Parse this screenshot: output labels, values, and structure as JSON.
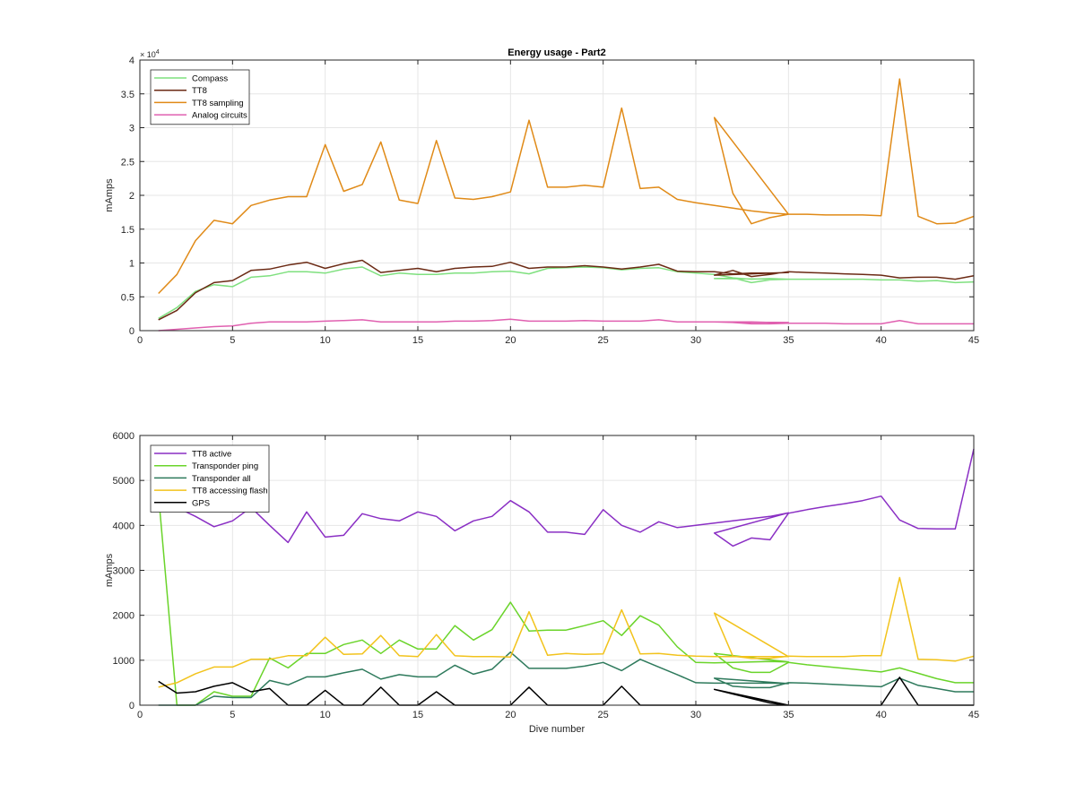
{
  "chart_data": [
    {
      "type": "line",
      "title": "Energy usage - Part2",
      "xlabel": "",
      "ylabel": "mAmps",
      "y_exponent": "× 10",
      "y_exponent_power": "4",
      "xlim": [
        0,
        45
      ],
      "ylim": [
        0,
        40000
      ],
      "xticks": [
        0,
        5,
        10,
        15,
        20,
        25,
        30,
        35,
        40,
        45
      ],
      "yticks": [
        0,
        5000,
        10000,
        15000,
        20000,
        25000,
        30000,
        35000,
        40000
      ],
      "ytick_labels": [
        "0",
        "0.5",
        "1",
        "1.5",
        "2",
        "2.5",
        "3",
        "3.5",
        "4"
      ],
      "grid": true,
      "legend_position": "top-left",
      "series": [
        {
          "name": "Compass",
          "color": "#7fe07f",
          "x": [
            1,
            2,
            3,
            4,
            5,
            6,
            7,
            8,
            9,
            10,
            11,
            12,
            13,
            14,
            15,
            16,
            17,
            18,
            19,
            20,
            21,
            22,
            23,
            24,
            25,
            26,
            27,
            28,
            29,
            30,
            31,
            32,
            33,
            34,
            35,
            31,
            32,
            33,
            34,
            35,
            36,
            37,
            38,
            39,
            40,
            41,
            42,
            43,
            44,
            45
          ],
          "y": [
            1800,
            3400,
            5800,
            6800,
            6500,
            7900,
            8100,
            8700,
            8700,
            8500,
            9100,
            9400,
            8100,
            8500,
            8300,
            8300,
            8500,
            8500,
            8700,
            8800,
            8400,
            9200,
            9300,
            9400,
            9300,
            9000,
            9200,
            9300,
            8700,
            8500,
            8300,
            7800,
            7600,
            7700,
            7600,
            7700,
            7800,
            7100,
            7500,
            7600,
            7600,
            7600,
            7600,
            7600,
            7500,
            7500,
            7300,
            7400,
            7100,
            7200
          ]
        },
        {
          "name": "TT8",
          "color": "#6b2a14",
          "x": [
            1,
            2,
            3,
            4,
            5,
            6,
            7,
            8,
            9,
            10,
            11,
            12,
            13,
            14,
            15,
            16,
            17,
            18,
            19,
            20,
            21,
            22,
            23,
            24,
            25,
            26,
            27,
            28,
            29,
            30,
            31,
            32,
            33,
            34,
            35,
            31,
            32,
            33,
            34,
            35,
            36,
            37,
            38,
            39,
            40,
            41,
            42,
            43,
            44,
            45
          ],
          "y": [
            1600,
            3000,
            5600,
            7100,
            7400,
            8900,
            9100,
            9700,
            10100,
            9200,
            9900,
            10400,
            8600,
            8900,
            9200,
            8700,
            9200,
            9400,
            9500,
            10100,
            9200,
            9400,
            9400,
            9600,
            9400,
            9100,
            9400,
            9800,
            8800,
            8700,
            8700,
            8400,
            8500,
            8500,
            8600,
            8200,
            8900,
            8000,
            8300,
            8700,
            8600,
            8500,
            8400,
            8300,
            8200,
            7800,
            7900,
            7900,
            7600,
            8100
          ]
        },
        {
          "name": "TT8 sampling",
          "color": "#e08a17",
          "x": [
            1,
            2,
            3,
            4,
            5,
            6,
            7,
            8,
            9,
            10,
            11,
            12,
            13,
            14,
            15,
            16,
            17,
            18,
            19,
            20,
            21,
            22,
            23,
            24,
            25,
            26,
            27,
            28,
            29,
            30,
            31,
            32,
            33,
            34,
            35,
            31,
            32,
            33,
            34,
            35,
            36,
            37,
            38,
            39,
            40,
            41,
            42,
            43,
            44,
            45
          ],
          "y": [
            5500,
            8300,
            13300,
            16300,
            15800,
            18500,
            19300,
            19800,
            19800,
            27500,
            20600,
            21600,
            27900,
            19300,
            18800,
            28100,
            19600,
            19400,
            19800,
            20500,
            31100,
            21200,
            21200,
            21500,
            21200,
            32900,
            21000,
            21200,
            19400,
            18900,
            18500,
            18100,
            17700,
            17400,
            17200,
            31500,
            20300,
            15800,
            16700,
            17200,
            17200,
            17100,
            17100,
            17100,
            17000,
            37200,
            16900,
            15800,
            15900,
            16900
          ]
        },
        {
          "name": "Analog circuits",
          "color": "#e060b0",
          "x": [
            1,
            2,
            3,
            4,
            5,
            6,
            7,
            8,
            9,
            10,
            11,
            12,
            13,
            14,
            15,
            16,
            17,
            18,
            19,
            20,
            21,
            22,
            23,
            24,
            25,
            26,
            27,
            28,
            29,
            30,
            31,
            32,
            33,
            34,
            35,
            31,
            32,
            33,
            34,
            35,
            36,
            37,
            38,
            39,
            40,
            41,
            42,
            43,
            44,
            45
          ],
          "y": [
            0,
            200,
            400,
            600,
            700,
            1100,
            1300,
            1300,
            1300,
            1400,
            1500,
            1600,
            1300,
            1300,
            1300,
            1300,
            1400,
            1400,
            1500,
            1700,
            1400,
            1400,
            1400,
            1500,
            1400,
            1400,
            1400,
            1600,
            1300,
            1300,
            1300,
            1300,
            1300,
            1200,
            1200,
            1300,
            1200,
            1000,
            1000,
            1100,
            1100,
            1100,
            1000,
            1000,
            1000,
            1500,
            1000,
            1000,
            1000,
            1000
          ]
        }
      ]
    },
    {
      "type": "line",
      "title": "",
      "xlabel": "Dive number",
      "ylabel": "mAmps",
      "xlim": [
        0,
        45
      ],
      "ylim": [
        0,
        6000
      ],
      "xticks": [
        0,
        5,
        10,
        15,
        20,
        25,
        30,
        35,
        40,
        45
      ],
      "yticks": [
        0,
        1000,
        2000,
        3000,
        4000,
        5000,
        6000
      ],
      "ytick_labels": [
        "0",
        "1000",
        "2000",
        "3000",
        "4000",
        "5000",
        "6000"
      ],
      "grid": true,
      "legend_position": "top-left",
      "series": [
        {
          "name": "TT8 active",
          "color": "#8a2fc4",
          "x": [
            1,
            2,
            3,
            4,
            5,
            6,
            7,
            8,
            9,
            10,
            11,
            12,
            13,
            14,
            15,
            16,
            17,
            18,
            19,
            20,
            21,
            22,
            23,
            24,
            25,
            26,
            27,
            28,
            29,
            30,
            31,
            32,
            33,
            34,
            35,
            31,
            32,
            33,
            34,
            35,
            36,
            37,
            38,
            39,
            40,
            41,
            42,
            43,
            44,
            45
          ],
          "y": [
            4500,
            4400,
            4200,
            3970,
            4100,
            4400,
            4000,
            3620,
            4300,
            3740,
            3780,
            4260,
            4150,
            4100,
            4300,
            4200,
            3880,
            4100,
            4200,
            4550,
            4300,
            3850,
            3850,
            3800,
            4350,
            4000,
            3850,
            4080,
            3950,
            4000,
            4050,
            4100,
            4150,
            4200,
            4280,
            3830,
            3540,
            3720,
            3680,
            4270,
            4350,
            4420,
            4480,
            4550,
            4650,
            4120,
            3930,
            3920,
            3920,
            5700
          ]
        },
        {
          "name": "Transponder ping",
          "color": "#6ad42a",
          "x": [
            1,
            2,
            3,
            4,
            5,
            6,
            7,
            8,
            9,
            10,
            11,
            12,
            13,
            14,
            15,
            16,
            17,
            18,
            19,
            20,
            21,
            22,
            23,
            24,
            25,
            26,
            27,
            28,
            29,
            30,
            31,
            32,
            33,
            34,
            35,
            31,
            32,
            33,
            34,
            35,
            36,
            37,
            38,
            39,
            40,
            41,
            42,
            43,
            44,
            45
          ],
          "y": [
            4700,
            0,
            0,
            300,
            200,
            200,
            1050,
            830,
            1150,
            1150,
            1350,
            1450,
            1150,
            1450,
            1250,
            1250,
            1770,
            1450,
            1680,
            2290,
            1650,
            1670,
            1670,
            1770,
            1880,
            1550,
            1990,
            1780,
            1300,
            950,
            940,
            950,
            960,
            970,
            960,
            1150,
            830,
            730,
            730,
            950,
            900,
            860,
            820,
            780,
            740,
            830,
            710,
            590,
            500,
            500
          ]
        },
        {
          "name": "Transponder all",
          "color": "#2e7a5c",
          "x": [
            1,
            2,
            3,
            4,
            5,
            6,
            7,
            8,
            9,
            10,
            11,
            12,
            13,
            14,
            15,
            16,
            17,
            18,
            19,
            20,
            21,
            22,
            23,
            24,
            25,
            26,
            27,
            28,
            29,
            30,
            31,
            32,
            33,
            34,
            35,
            31,
            32,
            33,
            34,
            35,
            36,
            37,
            38,
            39,
            40,
            41,
            42,
            43,
            44,
            45
          ],
          "y": [
            0,
            0,
            0,
            200,
            170,
            170,
            550,
            450,
            630,
            630,
            720,
            800,
            580,
            680,
            630,
            630,
            890,
            690,
            800,
            1180,
            820,
            820,
            820,
            870,
            950,
            770,
            1020,
            850,
            680,
            500,
            490,
            490,
            490,
            490,
            480,
            600,
            420,
            390,
            390,
            500,
            490,
            470,
            450,
            430,
            410,
            600,
            440,
            370,
            300,
            300
          ]
        },
        {
          "name": "TT8 accessing flash",
          "color": "#f2c31c",
          "x": [
            1,
            2,
            3,
            4,
            5,
            6,
            7,
            8,
            9,
            10,
            11,
            12,
            13,
            14,
            15,
            16,
            17,
            18,
            19,
            20,
            21,
            22,
            23,
            24,
            25,
            26,
            27,
            28,
            29,
            30,
            31,
            32,
            33,
            34,
            35,
            31,
            32,
            33,
            34,
            35,
            36,
            37,
            38,
            39,
            40,
            41,
            42,
            43,
            44,
            45
          ],
          "y": [
            400,
            500,
            700,
            850,
            850,
            1020,
            1020,
            1100,
            1100,
            1510,
            1130,
            1140,
            1550,
            1100,
            1080,
            1570,
            1100,
            1080,
            1080,
            1070,
            2080,
            1110,
            1150,
            1130,
            1140,
            2120,
            1140,
            1150,
            1110,
            1090,
            1080,
            1080,
            1080,
            1080,
            1080,
            2050,
            1090,
            1040,
            1040,
            1090,
            1080,
            1080,
            1080,
            1100,
            1100,
            2840,
            1020,
            1010,
            980,
            1090
          ]
        },
        {
          "name": "GPS",
          "color": "#000000",
          "x": [
            1,
            2,
            3,
            4,
            5,
            6,
            7,
            8,
            9,
            10,
            11,
            12,
            13,
            14,
            15,
            16,
            17,
            18,
            19,
            20,
            21,
            22,
            23,
            24,
            25,
            26,
            27,
            28,
            29,
            30,
            31,
            32,
            33,
            34,
            35,
            31,
            32,
            33,
            34,
            35,
            36,
            37,
            38,
            39,
            40,
            41,
            42,
            43,
            44,
            45
          ],
          "y": [
            530,
            270,
            300,
            420,
            500,
            300,
            370,
            0,
            0,
            330,
            0,
            0,
            400,
            0,
            0,
            300,
            0,
            0,
            0,
            0,
            400,
            0,
            0,
            0,
            0,
            420,
            0,
            0,
            0,
            0,
            0,
            0,
            0,
            0,
            0,
            350,
            250,
            150,
            50,
            0,
            0,
            0,
            0,
            0,
            0,
            620,
            0,
            0,
            0,
            0
          ]
        }
      ]
    }
  ]
}
